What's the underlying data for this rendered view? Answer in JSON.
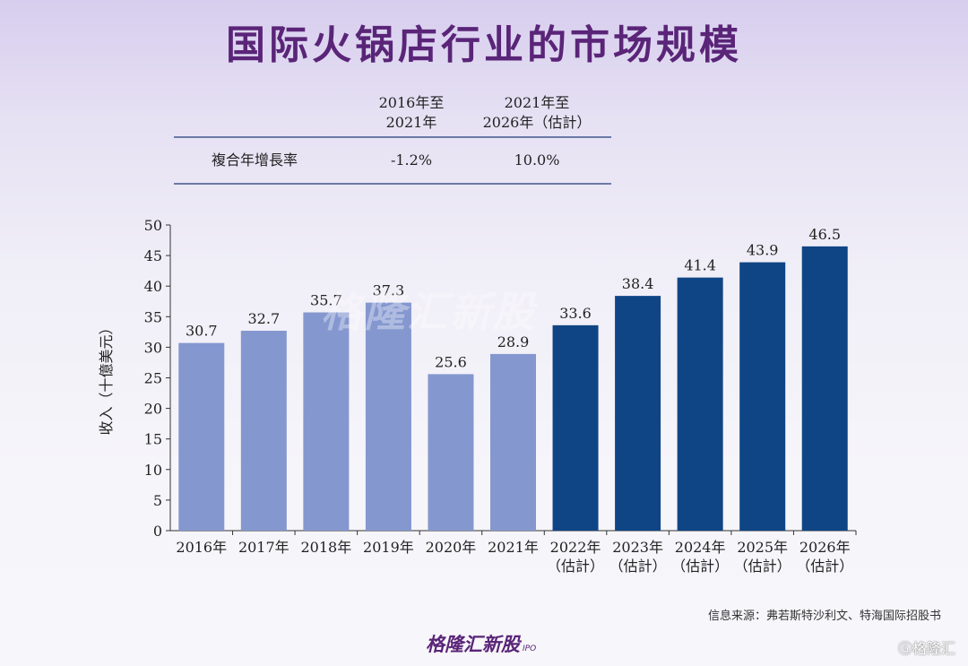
{
  "title": "国际火锅店行业的市场规模",
  "cagr_table": {
    "col1_header": "",
    "col2_header_line1": "2016年至",
    "col2_header_line2": "2021年",
    "col3_header_line1": "2021年至",
    "col3_header_line2": "2026年（估計）",
    "row_label": "複合年增長率",
    "row_val1": "-1.2%",
    "row_val2": "10.0%"
  },
  "source": "信息来源：弗若斯特沙利文、特海国际招股书",
  "brand": "格隆汇新股",
  "brand_sub": "IPO",
  "corner_mark": "Ⓖ格隆汇",
  "watermark": "格隆汇新股",
  "colors": {
    "title": "#5a2578",
    "historical_bar": "#8497cf",
    "forecast_bar": "#0f4584",
    "axis": "#333333"
  },
  "chart_data": {
    "type": "bar",
    "title": "",
    "xlabel": "",
    "ylabel": "收入（十億美元）",
    "ylim": [
      0,
      50
    ],
    "yticks": [
      0,
      5,
      10,
      15,
      20,
      25,
      30,
      35,
      40,
      45,
      50
    ],
    "grid": false,
    "categories": [
      [
        "2016年"
      ],
      [
        "2017年"
      ],
      [
        "2018年"
      ],
      [
        "2019年"
      ],
      [
        "2020年"
      ],
      [
        "2021年"
      ],
      [
        "2022年",
        "（估計）"
      ],
      [
        "2023年",
        "（估計）"
      ],
      [
        "2024年",
        "（估計）"
      ],
      [
        "2025年",
        "（估計）"
      ],
      [
        "2026年",
        "（估計）"
      ]
    ],
    "values": [
      30.7,
      32.7,
      35.7,
      37.3,
      25.6,
      28.9,
      33.6,
      38.4,
      41.4,
      43.9,
      46.5
    ],
    "value_labels": [
      "30.7",
      "32.7",
      "35.7",
      "37.3",
      "25.6",
      "28.9",
      "33.6",
      "38.4",
      "41.4",
      "43.9",
      "46.5"
    ],
    "forecast": [
      false,
      false,
      false,
      false,
      false,
      false,
      true,
      true,
      true,
      true,
      true
    ]
  }
}
